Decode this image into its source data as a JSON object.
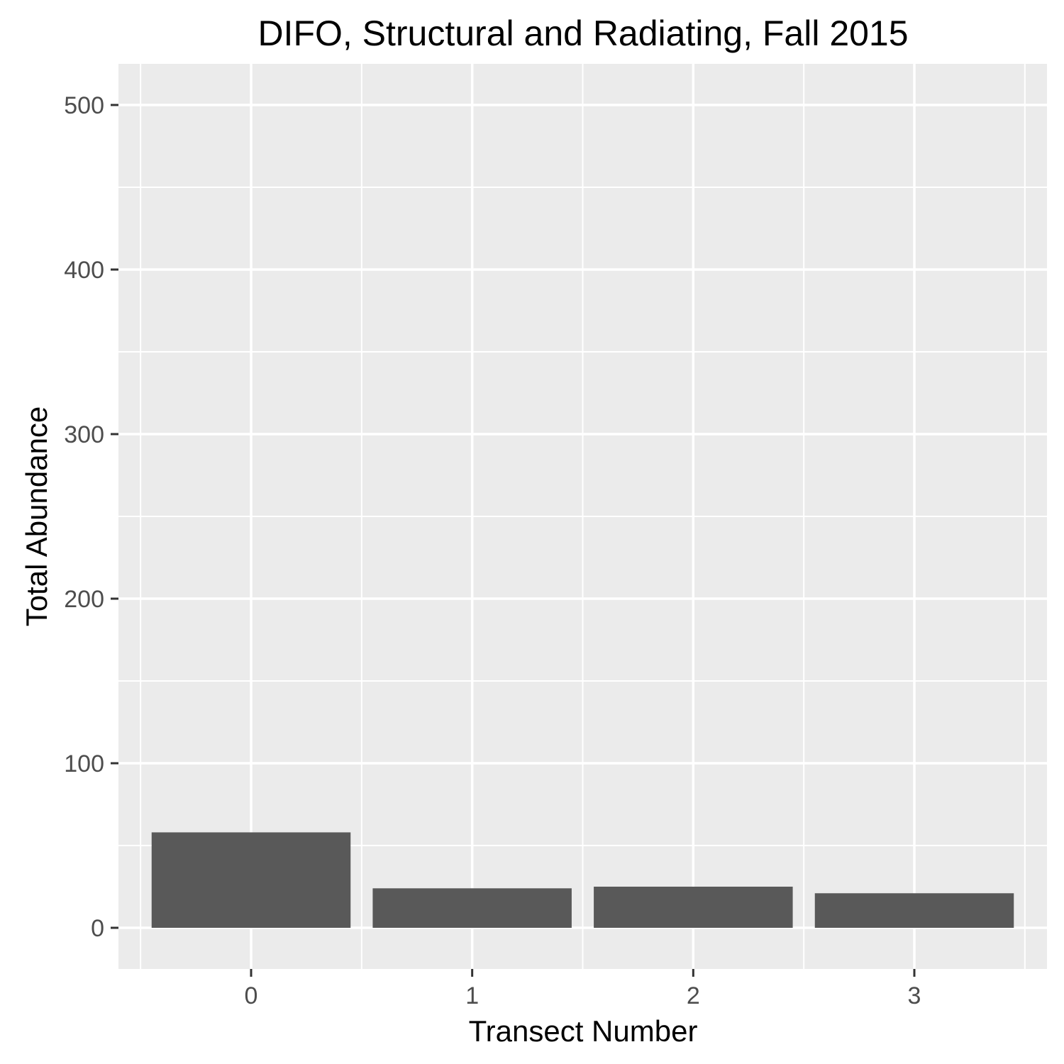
{
  "chart_data": {
    "type": "bar",
    "title": "DIFO, Structural and Radiating, Fall 2015",
    "xlabel": "Transect Number",
    "ylabel": "Total Abundance",
    "categories": [
      "0",
      "1",
      "2",
      "3"
    ],
    "values": [
      58,
      24,
      25,
      21
    ],
    "ylim": [
      -25,
      525
    ],
    "yticks": [
      0,
      100,
      200,
      300,
      400,
      500
    ],
    "y_minor_ticks": [
      50,
      150,
      250,
      350,
      450
    ],
    "grid": true,
    "legend": "none",
    "colors": {
      "bar": "#595959",
      "panel": "#ebebeb",
      "grid": "#ffffff",
      "tick": "#333333"
    }
  }
}
